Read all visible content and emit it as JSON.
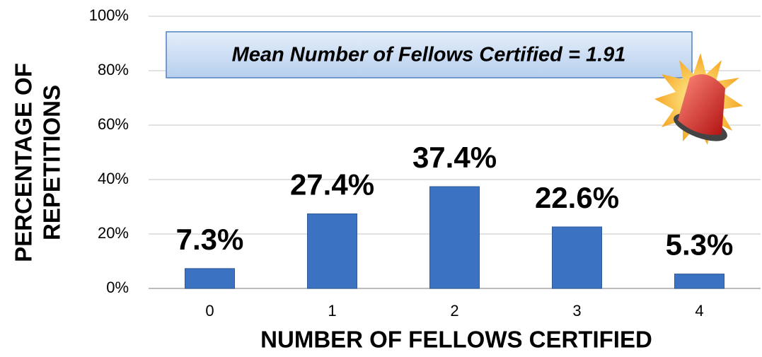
{
  "chart_data": {
    "type": "bar",
    "xlabel": "NUMBER OF FELLOWS CERTIFIED",
    "ylabel": [
      "PERCENTAGE OF",
      "REPETITIONS"
    ],
    "annotation": "Mean Number of Fellows Certified = 1.91",
    "categories": [
      "0",
      "1",
      "2",
      "3",
      "4"
    ],
    "values": [
      7.3,
      27.4,
      37.4,
      22.6,
      5.3
    ],
    "value_labels": [
      "7.3%",
      "27.4%",
      "37.4%",
      "22.6%",
      "5.3%"
    ],
    "color": "#3b73c2",
    "ylim": [
      0,
      100
    ],
    "yticks": [
      {
        "value": 0,
        "label": "0%"
      },
      {
        "value": 20,
        "label": "20%"
      },
      {
        "value": 40,
        "label": "40%"
      },
      {
        "value": 60,
        "label": "60%"
      },
      {
        "value": 80,
        "label": "80%"
      },
      {
        "value": 100,
        "label": "100%"
      }
    ],
    "grid": true
  }
}
